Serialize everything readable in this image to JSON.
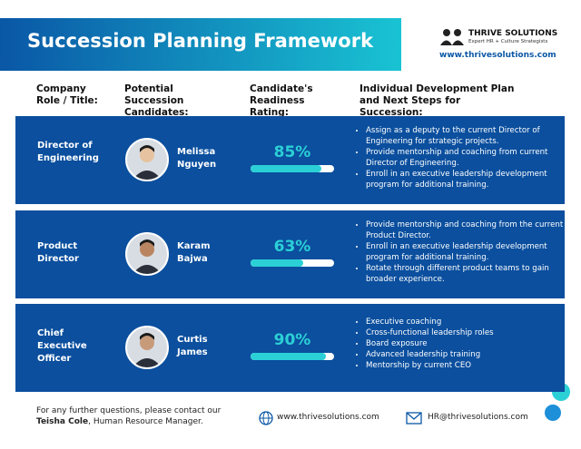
{
  "header": {
    "title": "Succession Planning Framework",
    "brand": "THRIVE SOLUTIONS",
    "tagline": "Expert HR + Culture Strategists",
    "website": "www.thrivesolutions.com"
  },
  "columns": [
    "Company Role / Title:",
    "Potential Succession Candidates:",
    "Candidate's Readiness Rating:",
    "Individual Development Plan and Next Steps for Succession:"
  ],
  "rating_scale": [
    0,
    100
  ],
  "rows": [
    {
      "role": "Director of Engineering",
      "candidate": "Melissa Nguyen",
      "rating": {
        "value": 85,
        "label": "85%"
      },
      "plan": [
        "Assign as a deputy to the current Director of Engineering for strategic projects.",
        "Provide mentorship and coaching from current Director of Engineering.",
        "Enroll in an executive leadership development program for additional training."
      ]
    },
    {
      "role": "Product Director",
      "candidate": "Karam Bajwa",
      "rating": {
        "value": 63,
        "label": "63%"
      },
      "plan": [
        "Provide mentorship and coaching from the current Product Director.",
        "Enroll in an executive leadership development program for additional training.",
        "Rotate through different product teams to gain broader experience."
      ]
    },
    {
      "role": "Chief Executive Officer",
      "candidate": "Curtis James",
      "rating": {
        "value": 90,
        "label": "90%"
      },
      "plan": [
        "Executive coaching",
        "Cross-functional leadership roles",
        "Board exposure",
        "Advanced leadership training",
        "Mentorship by current CEO"
      ]
    }
  ],
  "footer": {
    "contact_prefix": "For any further questions, please contact our",
    "contact_name": "Teisha Cole",
    "contact_suffix": ", Human Resource Manager.",
    "website": "www.thrivesolutions.com",
    "email": "HR@thrivesolutions.com"
  }
}
